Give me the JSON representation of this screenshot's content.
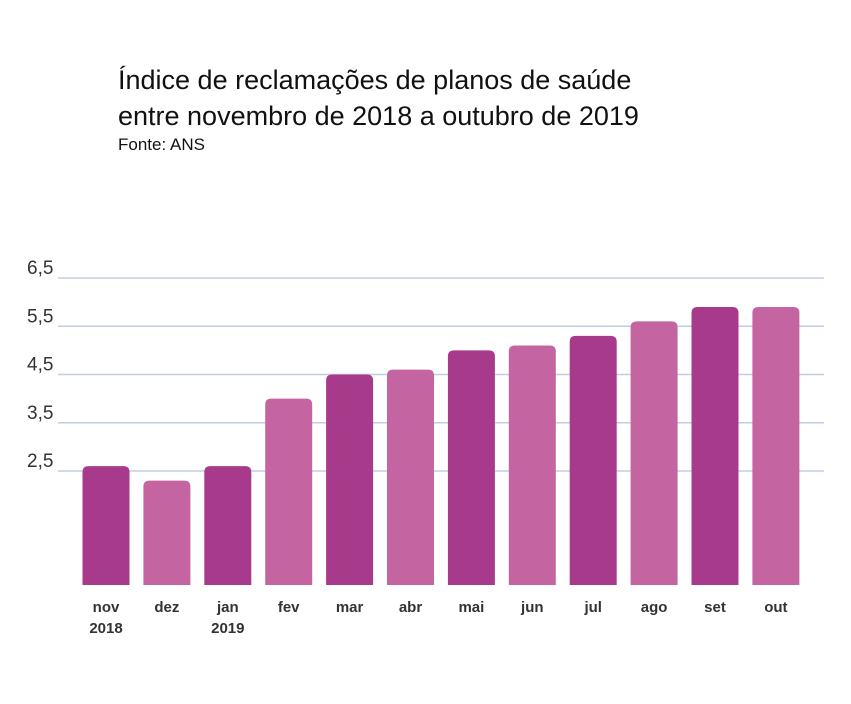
{
  "chart_data": {
    "type": "bar",
    "title_lines": [
      "Índice de reclamações de planos de saúde",
      "entre novembro de 2018 a outubro de 2019"
    ],
    "subtitle": "Fonte: ANS",
    "categories": [
      [
        "nov",
        "2018"
      ],
      [
        "dez"
      ],
      [
        "jan",
        "2019"
      ],
      [
        "fev"
      ],
      [
        "mar"
      ],
      [
        "abr"
      ],
      [
        "mai"
      ],
      [
        "jun"
      ],
      [
        "jul"
      ],
      [
        "ago"
      ],
      [
        "set"
      ],
      [
        "out"
      ]
    ],
    "values": [
      2.6,
      2.3,
      2.6,
      4.0,
      4.5,
      4.6,
      5.0,
      5.1,
      5.3,
      5.6,
      5.9,
      5.9
    ],
    "y_ticks": [
      "2,5",
      "3,5",
      "4,5",
      "5,5",
      "6,5"
    ],
    "y_tick_values": [
      2.5,
      3.5,
      4.5,
      5.5,
      6.5
    ],
    "grid": true,
    "colors": {
      "dark": "#a83a8c",
      "light": "#c465a2",
      "grid": "#c2cde3"
    },
    "bar_color_pattern": [
      "dark",
      "light",
      "dark",
      "light",
      "dark",
      "light",
      "dark",
      "light",
      "dark",
      "light",
      "dark",
      "light"
    ]
  }
}
